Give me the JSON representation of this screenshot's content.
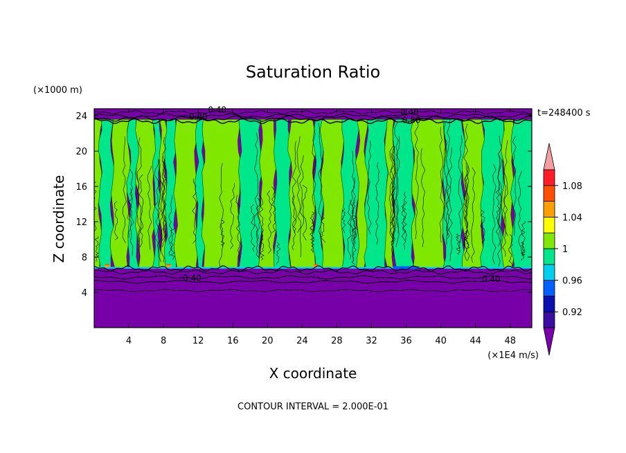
{
  "chart_data": {
    "type": "heatmap",
    "title": "Saturation Ratio",
    "xlabel": "X coordinate",
    "ylabel": "Z coordinate",
    "x_unit": "(×1E4 m/s)",
    "y_unit": "(×1000 m)",
    "xlim": [
      0,
      50.5
    ],
    "ylim": [
      0,
      24.8
    ],
    "x_ticks": [
      4,
      8,
      12,
      16,
      20,
      24,
      28,
      32,
      36,
      40,
      44,
      48
    ],
    "y_ticks": [
      4,
      8,
      12,
      16,
      20,
      24
    ],
    "time_label": "t=248400 s",
    "contour_interval_label": "CONTOUR INTERVAL = 2.000E-01",
    "contour_labels": [
      {
        "text": "0.40",
        "x": 11.3,
        "y": 5.6
      },
      {
        "text": "0.40",
        "x": 45.8,
        "y": 5.5
      },
      {
        "text": "0.40",
        "x": 14.2,
        "y": 24.7
      },
      {
        "text": "0.80",
        "x": 12.0,
        "y": 23.9
      },
      {
        "text": "0.40",
        "x": 36.4,
        "y": 24.4
      },
      {
        "text": "0.80",
        "x": 36.6,
        "y": 23.5
      }
    ],
    "regions": {
      "lower_dry": {
        "z_range": [
          0,
          6.8
        ],
        "value": "< 0.90"
      },
      "cloud_layer": {
        "z_range": [
          6.8,
          23.6
        ],
        "value_range": [
          0.98,
          1.02
        ]
      },
      "upper_dry": {
        "z_range": [
          23.6,
          24.8
        ],
        "value": "< 0.90"
      },
      "supersaturated_spots_x": [
        1.5,
        8.6,
        25.6
      ]
    },
    "columns": [
      {
        "x0": 0,
        "x1": 0.7,
        "level": "1.00-1.02"
      },
      {
        "x0": 0.7,
        "x1": 2.1,
        "level": "0.98-1.00"
      },
      {
        "x0": 2.1,
        "x1": 4.0,
        "level": "1.00-1.02"
      },
      {
        "x0": 4.0,
        "x1": 5.0,
        "level": "0.98-1.00"
      },
      {
        "x0": 5.0,
        "x1": 6.9,
        "level": "1.00-1.02"
      },
      {
        "x0": 6.9,
        "x1": 7.6,
        "level": "0.98-1.00"
      },
      {
        "x0": 7.6,
        "x1": 8.3,
        "level": "1.00-1.02"
      },
      {
        "x0": 8.3,
        "x1": 9.4,
        "level": "0.98-1.00"
      },
      {
        "x0": 9.4,
        "x1": 11.8,
        "level": "1.00-1.02"
      },
      {
        "x0": 11.8,
        "x1": 12.6,
        "level": "0.98-1.00"
      },
      {
        "x0": 12.6,
        "x1": 16.8,
        "level": "1.00-1.02"
      },
      {
        "x0": 16.8,
        "x1": 19.2,
        "level": "0.98-1.00"
      },
      {
        "x0": 19.2,
        "x1": 20.9,
        "level": "1.00-1.02"
      },
      {
        "x0": 20.9,
        "x1": 22.6,
        "level": "0.98-1.00"
      },
      {
        "x0": 22.6,
        "x1": 25.4,
        "level": "1.00-1.02"
      },
      {
        "x0": 25.4,
        "x1": 26.3,
        "level": "0.98-1.00"
      },
      {
        "x0": 26.3,
        "x1": 28.7,
        "level": "1.00-1.02"
      },
      {
        "x0": 28.7,
        "x1": 30.4,
        "level": "0.98-1.00"
      },
      {
        "x0": 30.4,
        "x1": 31.4,
        "level": "1.00-1.02"
      },
      {
        "x0": 31.4,
        "x1": 33.7,
        "level": "0.98-1.00"
      },
      {
        "x0": 33.7,
        "x1": 34.6,
        "level": "1.00-1.02"
      },
      {
        "x0": 34.6,
        "x1": 36.8,
        "level": "0.98-1.00"
      },
      {
        "x0": 36.8,
        "x1": 40.4,
        "level": "1.00-1.02"
      },
      {
        "x0": 40.4,
        "x1": 42.6,
        "level": "0.98-1.00"
      },
      {
        "x0": 42.6,
        "x1": 44.8,
        "level": "1.00-1.02"
      },
      {
        "x0": 44.8,
        "x1": 47.2,
        "level": "0.98-1.00"
      },
      {
        "x0": 47.2,
        "x1": 48.3,
        "level": "1.00-1.02"
      },
      {
        "x0": 48.3,
        "x1": 50.5,
        "level": "0.98-1.00"
      }
    ],
    "colorbar": {
      "tick_labels": [
        "0.92",
        "0.96",
        "1",
        "1.04",
        "1.08"
      ],
      "tick_values": [
        0.92,
        0.96,
        1.0,
        1.04,
        1.08
      ],
      "bounds": [
        0.9,
        1.1
      ],
      "extend": "both",
      "levels": [
        {
          "lo": 0.9,
          "hi": 0.92,
          "color": "#3a0ea0"
        },
        {
          "lo": 0.92,
          "hi": 0.94,
          "color": "#0a10b0"
        },
        {
          "lo": 0.94,
          "hi": 0.96,
          "color": "#0060ff"
        },
        {
          "lo": 0.96,
          "hi": 0.98,
          "color": "#00d0f0"
        },
        {
          "lo": 0.98,
          "hi": 1.0,
          "color": "#00e68a"
        },
        {
          "lo": 1.0,
          "hi": 1.02,
          "color": "#80e800"
        },
        {
          "lo": 1.02,
          "hi": 1.04,
          "color": "#ffff00"
        },
        {
          "lo": 1.04,
          "hi": 1.06,
          "color": "#ffa000"
        },
        {
          "lo": 1.06,
          "hi": 1.08,
          "color": "#ff5000"
        },
        {
          "lo": 1.08,
          "hi": 1.1,
          "color": "#ff1e28"
        }
      ],
      "under_color": "#7800a8",
      "over_color": "#f0a0a0"
    }
  }
}
